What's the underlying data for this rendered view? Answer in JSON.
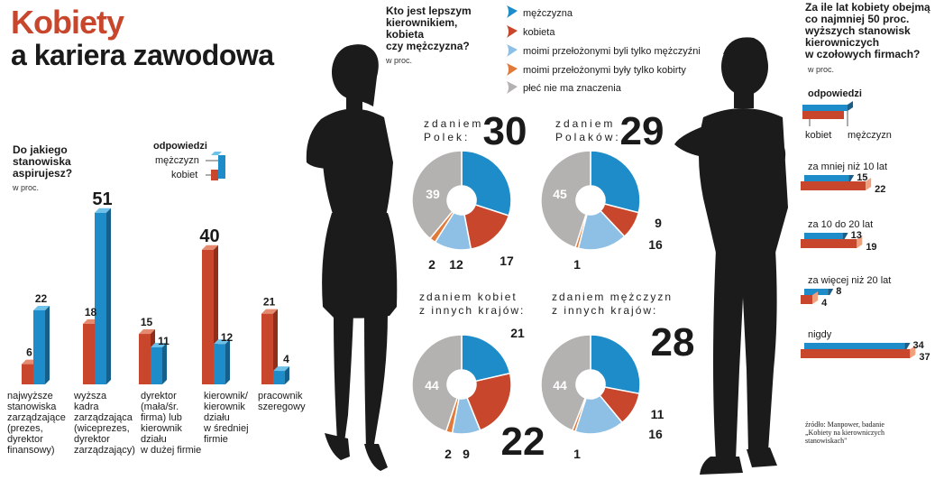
{
  "title": {
    "line1": "Kobiety",
    "line2": "a kariera zawodowa"
  },
  "colors": {
    "blue": "#1e8cc9",
    "red": "#c8462c",
    "light_blue": "#8ec0e6",
    "orange": "#e07a3a",
    "gray": "#b4b2b0",
    "blue_top": "#6ec2ea",
    "red_top": "#e58a6e"
  },
  "left_chart": {
    "title": "Do jakiego stanowiska aspirujesz?",
    "title_lines": [
      "Do jakiego",
      "stanowiska",
      "aspirujesz?"
    ],
    "unit": "w proc.",
    "legend_title": "odpowiedzi",
    "legend_men": "mężczyzn",
    "legend_women": "kobiet",
    "labels": [
      [
        "najwyższe",
        "stanowiska",
        "zarządzające",
        "(prezes,",
        "dyrektor",
        "finansowy)"
      ],
      [
        "wyższa",
        "kadra",
        "zarządzająca",
        "(wiceprezes,",
        "dyrektor",
        "zarządzający)"
      ],
      [
        "dyrektor",
        "(mała/śr.",
        "firma) lub",
        "kierownik",
        "działu",
        "w dużej firmie"
      ],
      [
        "kierownik/",
        "kierownik",
        "działu",
        "w średniej",
        "firmie"
      ],
      [
        "pracownik",
        "szeregowy"
      ]
    ]
  },
  "pie_section": {
    "question_lines": [
      "Kto jest lepszym",
      "kierownikiem,",
      "kobieta",
      "czy mężczyzna?"
    ],
    "unit": "w proc.",
    "legend": [
      "mężczyzna",
      "kobieta",
      "moimi przełożonymi byli tylko mężczyźni",
      "moimi przełożonymi były tylko kobirty",
      "płeć nie ma znaczenia"
    ]
  },
  "pie_labels": [
    {
      "l1": "zdaniem",
      "l2": "Polek:"
    },
    {
      "l1": "zdaniem",
      "l2": "Polaków:"
    },
    {
      "l1": "zdaniem kobiet",
      "l2": "z innych krajów:"
    },
    {
      "l1": "zdaniem mężczyzn",
      "l2": "z innych krajów:"
    }
  ],
  "right_chart": {
    "title_lines": [
      "Za ile lat kobiety obejmą",
      "co najmniej 50 proc.",
      "wyższych stanowisk",
      "kierowniczych",
      "w czołowych firmach?"
    ],
    "unit": "w proc.",
    "legend_title": "odpowiedzi",
    "legend_women": "kobiet",
    "legend_men": "mężczyzn"
  },
  "source": [
    "źródło: Manpower, badanie",
    "„Kobiety na kierowniczych",
    "stanowiskach\""
  ],
  "chart_data": [
    {
      "type": "bar",
      "title": "Do jakiego stanowiska aspirujesz?",
      "categories": [
        "najwyższe stanowiska zarządzające (prezes, dyrektor finansowy)",
        "wyższa kadra zarządzająca (wiceprezes, dyrektor zarządzający)",
        "dyrektor (mała/śr. firma) lub kierownik działu w dużej firmie",
        "kierownik/kierownik działu w średniej firmie",
        "pracownik szeregowy"
      ],
      "series": [
        {
          "name": "kobiet",
          "values": [
            6,
            18,
            15,
            40,
            21
          ]
        },
        {
          "name": "mężczyzn",
          "values": [
            22,
            51,
            11,
            12,
            4
          ]
        }
      ],
      "ylabel": "w proc."
    },
    {
      "type": "pie",
      "title": "Kto jest lepszym kierownikiem, kobieta czy mężczyzna? zdaniem Polek",
      "categories": [
        "mężczyzna",
        "kobieta",
        "moimi przełożonymi byli tylko mężczyźni",
        "moimi przełożonymi były tylko kobirty",
        "płeć nie ma znaczenia"
      ],
      "values": [
        30,
        17,
        12,
        2,
        39
      ]
    },
    {
      "type": "pie",
      "title": "zdaniem Polaków",
      "categories": [
        "mężczyzna",
        "kobieta",
        "moimi przełożonymi byli tylko mężczyźni",
        "moimi przełożonymi były tylko kobirty",
        "płeć nie ma znaczenia"
      ],
      "values": [
        29,
        9,
        16,
        1,
        45
      ]
    },
    {
      "type": "pie",
      "title": "zdaniem kobiet z innych krajów",
      "categories": [
        "mężczyzna",
        "kobieta",
        "moimi przełożonymi byli tylko mężczyźni",
        "moimi przełożonymi były tylko kobirty",
        "płeć nie ma znaczenia"
      ],
      "values": [
        21,
        22,
        9,
        2,
        44
      ]
    },
    {
      "type": "pie",
      "title": "zdaniem mężczyzn z innych krajów",
      "categories": [
        "mężczyzna",
        "kobieta",
        "moimi przełożonymi byli tylko mężczyźni",
        "moimi przełożonymi były tylko kobirty",
        "płeć nie ma znaczenia"
      ],
      "values": [
        28,
        11,
        16,
        1,
        44
      ]
    },
    {
      "type": "bar",
      "orientation": "horizontal",
      "title": "Za ile lat kobiety obejmą co najmniej 50 proc. wyższych stanowisk kierowniczych w czołowych firmach?",
      "categories": [
        "za mniej niż 10 lat",
        "za 10 do 20 lat",
        "za więcej niż 20 lat",
        "nigdy"
      ],
      "series": [
        {
          "name": "mężczyzn",
          "values": [
            15,
            13,
            8,
            34
          ]
        },
        {
          "name": "kobiet",
          "values": [
            22,
            19,
            4,
            37
          ]
        }
      ]
    }
  ]
}
